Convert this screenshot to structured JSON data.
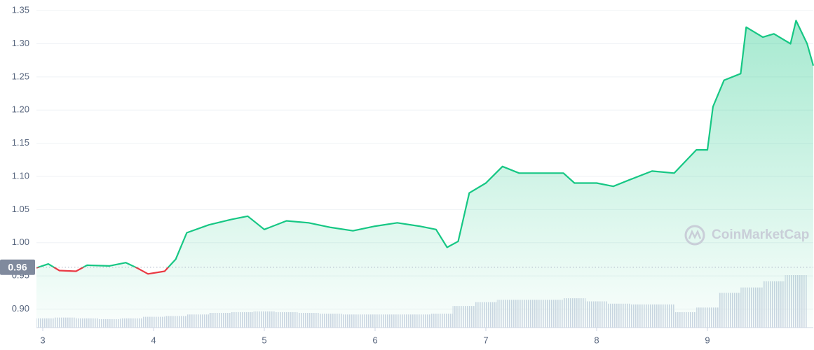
{
  "chart_data": {
    "type": "line",
    "watermark": "CoinMarketCap",
    "xlim": [
      2.943,
      9.956
    ],
    "xticks": [
      3,
      4,
      5,
      6,
      7,
      8,
      9
    ],
    "ylim": [
      0.872,
      1.366
    ],
    "yticks": [
      {
        "value": 0.9,
        "label": "0.90"
      },
      0.95,
      {
        "value": 1.0,
        "label": "1.00"
      },
      1.05,
      {
        "value": 1.1,
        "label": "1.10"
      },
      1.15,
      {
        "value": 1.2,
        "label": "1.20"
      },
      1.25,
      {
        "value": 1.3,
        "label": "1.30"
      },
      1.35
    ],
    "grid": true,
    "reference": {
      "value": 0.963,
      "label": "0.96"
    },
    "up_color": "#16c784",
    "down_color": "#ea3943",
    "series": [
      {
        "color": "#16c784",
        "x": [
          2.943,
          3.05,
          3.15,
          3.3,
          3.4,
          3.6,
          3.75,
          3.85,
          3.95,
          4.1,
          4.2,
          4.3,
          4.5,
          4.7,
          4.85,
          5.0,
          5.2,
          5.4,
          5.6,
          5.8,
          6.0,
          6.2,
          6.4,
          6.55,
          6.65,
          6.75,
          6.85,
          7.0,
          7.15,
          7.3,
          7.5,
          7.7,
          7.8,
          8.0,
          8.15,
          8.3,
          8.5,
          8.7,
          8.9,
          9.0,
          9.05,
          9.15,
          9.3,
          9.35,
          9.5,
          9.6,
          9.75,
          9.8,
          9.9,
          9.956
        ],
        "values": [
          0.962,
          0.968,
          0.958,
          0.957,
          0.966,
          0.965,
          0.97,
          0.962,
          0.953,
          0.957,
          0.975,
          1.015,
          1.027,
          1.035,
          1.04,
          1.02,
          1.033,
          1.03,
          1.023,
          1.018,
          1.025,
          1.03,
          1.025,
          1.02,
          0.993,
          1.002,
          1.075,
          1.09,
          1.115,
          1.105,
          1.105,
          1.105,
          1.09,
          1.09,
          1.085,
          1.095,
          1.108,
          1.105,
          1.14,
          1.14,
          1.205,
          1.245,
          1.255,
          1.325,
          1.31,
          1.315,
          1.3,
          1.335,
          1.3,
          1.267
        ]
      }
    ],
    "volume": {
      "color": "#cfd6e4",
      "x": [
        3.0,
        3.2,
        3.4,
        3.6,
        3.8,
        4.0,
        4.2,
        4.4,
        4.6,
        4.8,
        5.0,
        5.2,
        5.4,
        5.6,
        5.8,
        6.0,
        6.2,
        6.4,
        6.6,
        6.8,
        7.0,
        7.2,
        7.4,
        7.6,
        7.8,
        8.0,
        8.2,
        8.4,
        8.6,
        8.8,
        9.0,
        9.2,
        9.4,
        9.6,
        9.8
      ],
      "values": [
        12,
        13,
        12,
        11,
        12,
        14,
        15,
        17,
        19,
        20,
        21,
        20,
        19,
        18,
        17,
        17,
        17,
        17,
        18,
        28,
        33,
        36,
        36,
        36,
        38,
        34,
        31,
        30,
        30,
        20,
        26,
        45,
        52,
        60,
        68
      ]
    }
  }
}
